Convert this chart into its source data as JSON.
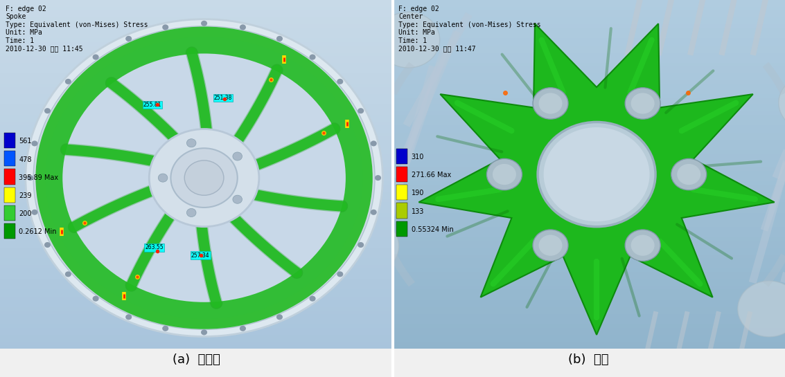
{
  "caption_left": "(a)  스포크",
  "caption_right": "(b)  센터",
  "left_info_lines": [
    "F: edge 02",
    "Spoke",
    "Type: Equivalent (von-Mises) Stress",
    "Unit: MPa",
    "Time: 1",
    "2010-12-30 오전 11:45"
  ],
  "right_info_lines": [
    "F: edge 02",
    "Center",
    "Type: Equivalent (von-Mises) Stress",
    "Unit: MPa",
    "Time: 1",
    "2010-12-30 오전 11:47"
  ],
  "left_legend_values": [
    "561",
    "478",
    "395.89 Max",
    "239",
    "200",
    "0.2612 Min"
  ],
  "left_legend_colors": [
    "#0000cc",
    "#0055ff",
    "#ff0000",
    "#ffff00",
    "#33cc33",
    "#009900"
  ],
  "right_legend_values": [
    "310",
    "271.66 Max",
    "190",
    "133",
    "0.55324 Min"
  ],
  "right_legend_colors": [
    "#0000cc",
    "#ff0000",
    "#ffff00",
    "#aacc00",
    "#009900"
  ],
  "bg_left_top": "#c8dae8",
  "bg_left_bottom": "#a8c4dc",
  "bg_right_top": "#b0cce0",
  "bg_right_bottom": "#90b4cc",
  "spoke_green": "#22bb22",
  "spoke_green_dark": "#119911",
  "center_green": "#22bb22",
  "hub_gray": "#c8d8e4",
  "rim_gray": "#d0dce8",
  "caption_fontsize": 13,
  "info_fontsize": 7,
  "legend_fontsize": 7
}
